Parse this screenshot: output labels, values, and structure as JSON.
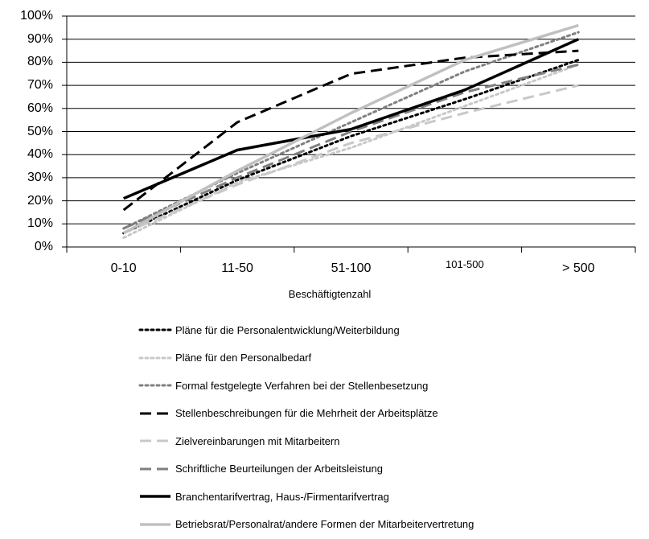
{
  "chart_data": {
    "type": "line",
    "title": "",
    "xlabel": "Beschäftigtenzahl",
    "ylabel": "",
    "categories": [
      "0-10",
      "11-50",
      "51-100",
      "101-500",
      "> 500"
    ],
    "ylim": [
      0,
      100
    ],
    "yticks": [
      "0%",
      "10%",
      "20%",
      "30%",
      "40%",
      "50%",
      "60%",
      "70%",
      "80%",
      "90%",
      "100%"
    ],
    "grid": "horizontal",
    "legend_position": "bottom",
    "series": [
      {
        "name": "Pläne für die Personalentwicklung/Weiterbildung",
        "values": [
          6,
          29,
          48,
          64,
          81
        ],
        "color": "#000000",
        "dash": "dotted"
      },
      {
        "name": "Pläne für den Personalbedarf",
        "values": [
          4,
          28,
          43,
          61,
          79
        ],
        "color": "#c8c8c8",
        "dash": "dotted"
      },
      {
        "name": "Formal festgelegte Verfahren bei der Stellenbesetzung",
        "values": [
          8,
          32,
          54,
          76,
          93
        ],
        "color": "#808080",
        "dash": "dotted"
      },
      {
        "name": "Stellenbeschreibungen für die Mehrheit der Arbeitsplätze",
        "values": [
          16,
          54,
          75,
          82,
          85
        ],
        "color": "#000000",
        "dash": "long-dash"
      },
      {
        "name": "Zielvereinbarungen mit Mitarbeitern",
        "values": [
          6,
          27,
          45,
          58,
          70
        ],
        "color": "#c8c8c8",
        "dash": "long-dash"
      },
      {
        "name": "Schriftliche Beurteilungen der Arbeitsleistung",
        "values": [
          8,
          30,
          50,
          67,
          79
        ],
        "color": "#808080",
        "dash": "long-dash"
      },
      {
        "name": "Branchentarifvertrag, Haus-/Firmentarifvertrag",
        "values": [
          21,
          42,
          51,
          68,
          90
        ],
        "color": "#000000",
        "dash": "solid"
      },
      {
        "name": "Betriebsrat/Personalrat/andere Formen der Mitarbeitervertretung",
        "values": [
          6,
          33,
          58,
          81,
          96
        ],
        "color": "#c0c0c0",
        "dash": "solid"
      }
    ]
  }
}
